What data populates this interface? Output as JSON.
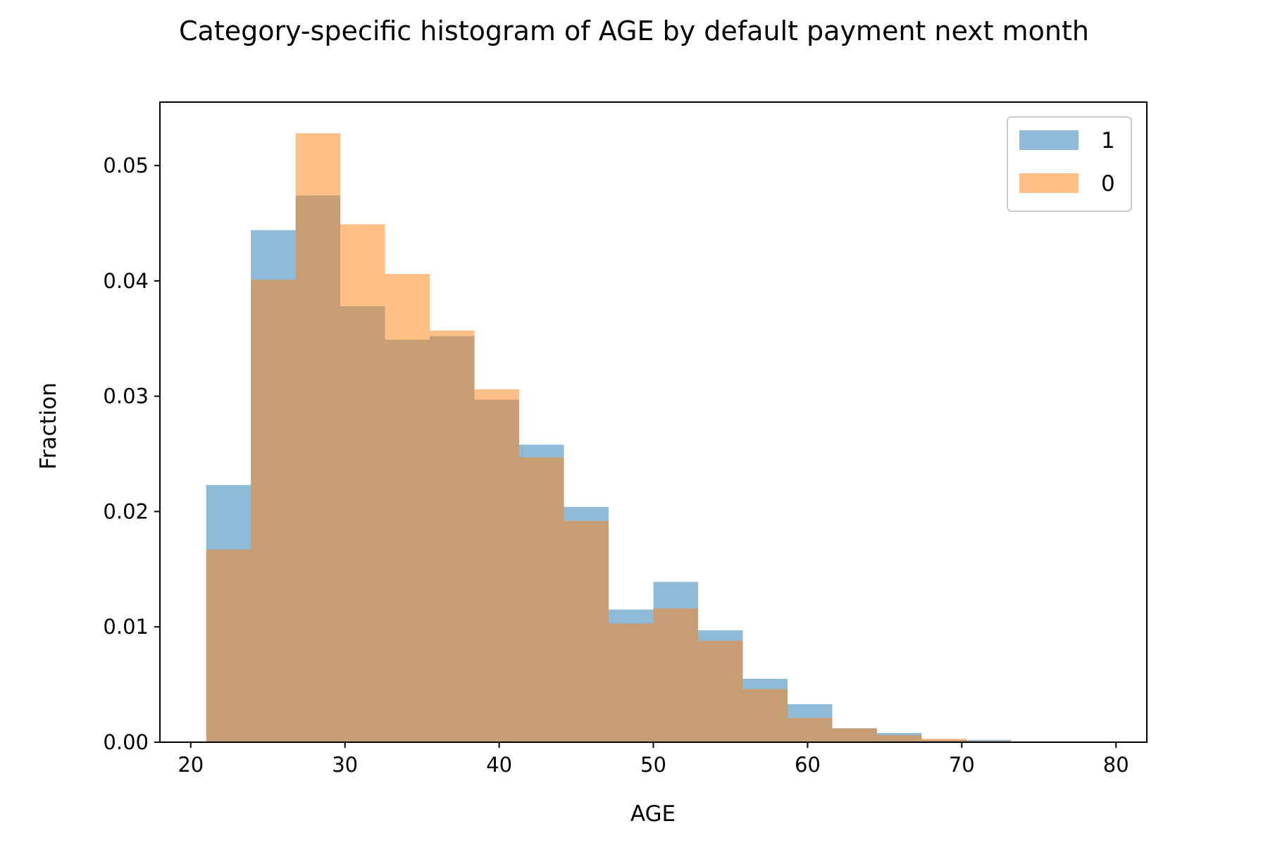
{
  "chart_data": {
    "type": "bar",
    "title": "Category-specific histogram of AGE by default payment next month",
    "xlabel": "AGE",
    "ylabel": "Fraction",
    "xlim": [
      18.0,
      82.0
    ],
    "ylim": [
      0,
      0.0555
    ],
    "x_ticks": [
      20,
      30,
      40,
      50,
      60,
      70,
      80
    ],
    "x_tick_labels": [
      "20",
      "30",
      "40",
      "50",
      "60",
      "70",
      "80"
    ],
    "y_ticks": [
      0.0,
      0.01,
      0.02,
      0.03,
      0.04,
      0.05
    ],
    "y_tick_labels": [
      "0.00",
      "0.01",
      "0.02",
      "0.03",
      "0.04",
      "0.05"
    ],
    "grid": false,
    "legend_position": "top-right",
    "bin_edges": [
      21.0,
      23.9,
      26.8,
      29.7,
      32.6,
      35.5,
      38.4,
      41.3,
      44.2,
      47.1,
      50.0,
      52.9,
      55.8,
      58.7,
      61.6,
      64.5,
      67.4,
      70.3,
      73.2,
      76.1,
      79.0
    ],
    "series": [
      {
        "name": "1",
        "color": "#1f77b4",
        "opacity": 0.5,
        "values": [
          0.0223,
          0.0444,
          0.0474,
          0.0378,
          0.0349,
          0.0352,
          0.0297,
          0.0258,
          0.0204,
          0.0115,
          0.0139,
          0.0097,
          0.0055,
          0.0033,
          0.0012,
          0.0008,
          0.0002,
          0.0002,
          0.0,
          0.0
        ]
      },
      {
        "name": "0",
        "color": "#ff7f0e",
        "opacity": 0.5,
        "values": [
          0.0167,
          0.0401,
          0.0528,
          0.0449,
          0.0406,
          0.0357,
          0.0306,
          0.0247,
          0.0192,
          0.0103,
          0.0116,
          0.0088,
          0.0046,
          0.0021,
          0.0012,
          0.0006,
          0.0003,
          0.0001,
          0.0,
          0.0
        ]
      }
    ]
  }
}
